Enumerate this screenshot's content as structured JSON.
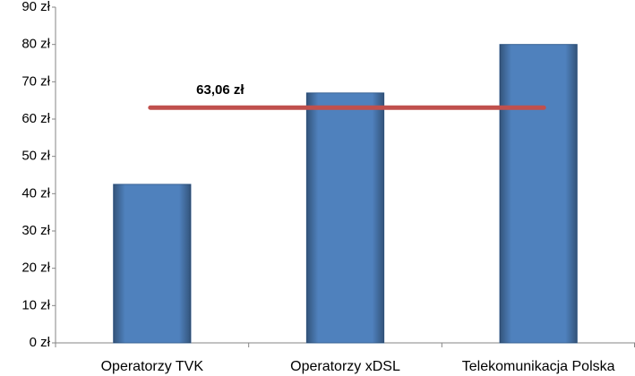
{
  "chart_data": {
    "type": "bar",
    "categories": [
      "Operatorzy TVK",
      "Operatorzy xDSL",
      "Telekomunikacja Polska"
    ],
    "values": [
      42.5,
      67,
      80
    ],
    "color": "#4f81bd",
    "ylim": [
      0,
      90
    ],
    "yticks": [
      {
        "value": 0,
        "label": "0 zł"
      },
      {
        "value": 10,
        "label": "10 zł"
      },
      {
        "value": 20,
        "label": "20 zł"
      },
      {
        "value": 30,
        "label": "30 zł"
      },
      {
        "value": 40,
        "label": "40 zł"
      },
      {
        "value": 50,
        "label": "50 zł"
      },
      {
        "value": 60,
        "label": "60 zł"
      },
      {
        "value": 70,
        "label": "70 zł"
      },
      {
        "value": 80,
        "label": "80 zł"
      },
      {
        "value": 90,
        "label": "90 zł"
      }
    ],
    "average": {
      "value": 63.06,
      "label": "63,06 zł",
      "color": "#c0504d"
    }
  }
}
